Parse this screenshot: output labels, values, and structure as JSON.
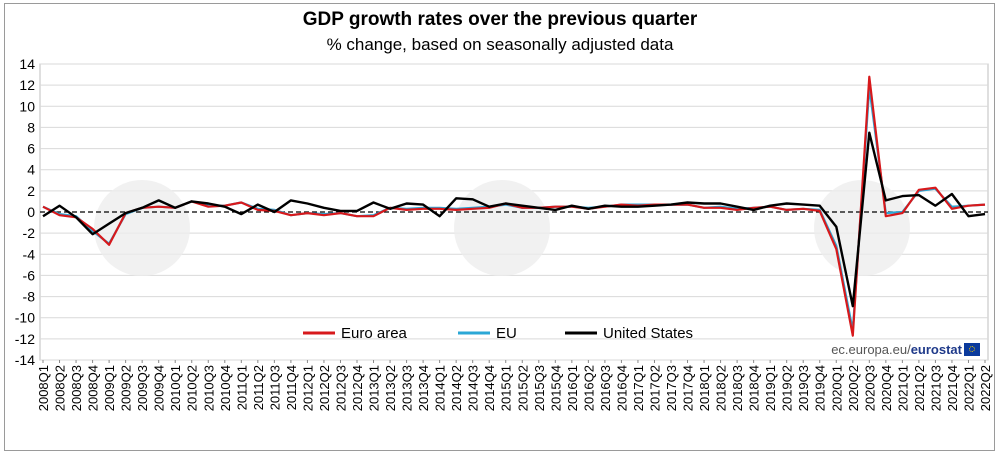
{
  "title": "GDP growth rates over the previous quarter",
  "subtitle": "% change, based on seasonally adjusted data",
  "source_text": "ec.europa.eu/",
  "source_brand": "eurostat",
  "colors": {
    "euro_area": "#d7191c",
    "eu": "#2aa7d6",
    "us": "#000000",
    "grid": "#d9d9d9"
  },
  "chart_data": {
    "type": "line",
    "title": "GDP growth rates over the previous quarter",
    "subtitle": "% change, based on seasonally adjusted data",
    "xlabel": "",
    "ylabel": "",
    "ylim": [
      -14,
      14
    ],
    "yticks": [
      14,
      12,
      10,
      8,
      6,
      4,
      2,
      0,
      -2,
      -4,
      -6,
      -8,
      -10,
      -12,
      -14
    ],
    "legend": "inside, lower-middle",
    "categories": [
      "2008Q1",
      "2008Q2",
      "2008Q3",
      "2008Q4",
      "2009Q1",
      "2009Q2",
      "2009Q3",
      "2009Q4",
      "2010Q1",
      "2010Q2",
      "2010Q3",
      "2010Q4",
      "2011Q1",
      "2011Q2",
      "2011Q3",
      "2011Q4",
      "2012Q1",
      "2012Q2",
      "2012Q3",
      "2012Q4",
      "2013Q1",
      "2013Q2",
      "2013Q3",
      "2013Q4",
      "2014Q1",
      "2014Q2",
      "2014Q3",
      "2014Q4",
      "2015Q1",
      "2015Q2",
      "2015Q3",
      "2015Q4",
      "2016Q1",
      "2016Q2",
      "2016Q3",
      "2016Q4",
      "2017Q1",
      "2017Q2",
      "2017Q3",
      "2017Q4",
      "2018Q1",
      "2018Q2",
      "2018Q3",
      "2018Q4",
      "2019Q1",
      "2019Q2",
      "2019Q3",
      "2019Q4",
      "2020Q1",
      "2020Q2",
      "2020Q3",
      "2020Q4",
      "2021Q1",
      "2021Q2",
      "2021Q3",
      "2021Q4",
      "2022Q1",
      "2022Q2"
    ],
    "series": [
      {
        "name": "Euro area",
        "color": "#d7191c",
        "values": [
          0.5,
          -0.3,
          -0.5,
          -1.6,
          -3.1,
          -0.1,
          0.4,
          0.5,
          0.4,
          1.0,
          0.5,
          0.6,
          0.9,
          0.2,
          0.1,
          -0.3,
          -0.1,
          -0.3,
          -0.1,
          -0.4,
          -0.4,
          0.4,
          0.2,
          0.3,
          0.3,
          0.2,
          0.3,
          0.4,
          0.8,
          0.4,
          0.4,
          0.5,
          0.5,
          0.3,
          0.5,
          0.7,
          0.6,
          0.7,
          0.7,
          0.7,
          0.4,
          0.4,
          0.2,
          0.4,
          0.5,
          0.2,
          0.3,
          0.1,
          -3.5,
          -11.7,
          12.8,
          -0.4,
          -0.1,
          2.1,
          2.3,
          0.3,
          0.6,
          0.7
        ]
      },
      {
        "name": "EU",
        "color": "#2aa7d6",
        "values": [
          0.5,
          -0.2,
          -0.4,
          -1.8,
          -3.0,
          -0.2,
          0.4,
          0.5,
          0.4,
          1.0,
          0.6,
          0.6,
          0.9,
          0.3,
          0.2,
          -0.3,
          -0.1,
          -0.2,
          -0.1,
          -0.4,
          -0.3,
          0.4,
          0.3,
          0.4,
          0.4,
          0.3,
          0.4,
          0.5,
          0.7,
          0.4,
          0.4,
          0.5,
          0.5,
          0.4,
          0.5,
          0.7,
          0.7,
          0.7,
          0.7,
          0.7,
          0.4,
          0.5,
          0.3,
          0.4,
          0.5,
          0.2,
          0.3,
          0.2,
          -3.2,
          -11.2,
          11.8,
          -0.1,
          0.0,
          2.0,
          2.2,
          0.5,
          0.6,
          0.7
        ]
      },
      {
        "name": "United States",
        "color": "#000000",
        "values": [
          -0.4,
          0.6,
          -0.5,
          -2.1,
          -1.1,
          -0.1,
          0.4,
          1.1,
          0.4,
          1.0,
          0.8,
          0.5,
          -0.2,
          0.7,
          0.0,
          1.1,
          0.8,
          0.4,
          0.1,
          0.1,
          0.9,
          0.3,
          0.8,
          0.7,
          -0.4,
          1.3,
          1.2,
          0.5,
          0.8,
          0.6,
          0.4,
          0.2,
          0.6,
          0.3,
          0.6,
          0.5,
          0.5,
          0.6,
          0.7,
          0.9,
          0.8,
          0.8,
          0.5,
          0.2,
          0.6,
          0.8,
          0.7,
          0.6,
          -1.4,
          -8.9,
          7.5,
          1.1,
          1.5,
          1.6,
          0.6,
          1.7,
          -0.4,
          -0.2
        ]
      }
    ]
  }
}
